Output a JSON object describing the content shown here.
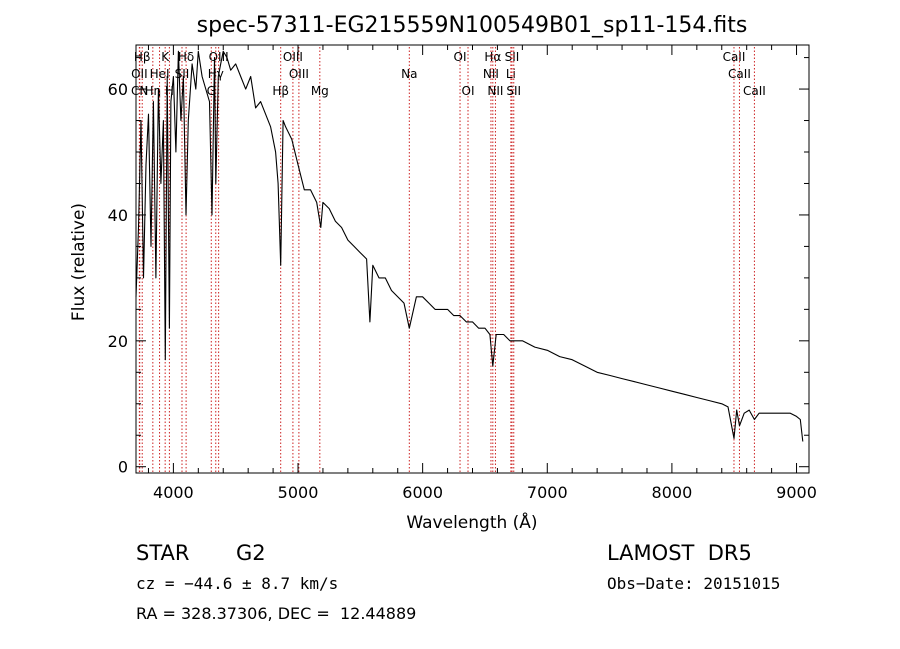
{
  "chart_data": {
    "type": "line",
    "title": "spec-57311-EG215559N100549B01_sp11-154.fits",
    "xlabel": "Wavelength (Å)",
    "ylabel": "Flux (relative)",
    "xlim": [
      3700,
      9100
    ],
    "ylim": [
      -1,
      67
    ],
    "xticks": [
      4000,
      5000,
      6000,
      7000,
      8000,
      9000
    ],
    "yticks": [
      0,
      20,
      40,
      60
    ],
    "grid": false,
    "series": [
      {
        "x": [
          3700,
          3720,
          3740,
          3760,
          3780,
          3800,
          3820,
          3840,
          3860,
          3880,
          3900,
          3920,
          3935,
          3950,
          3968,
          3980,
          4000,
          4020,
          4040,
          4060,
          4080,
          4101,
          4120,
          4150,
          4180,
          4200,
          4230,
          4260,
          4290,
          4310,
          4330,
          4340,
          4360,
          4380,
          4400,
          4430,
          4460,
          4500,
          4540,
          4580,
          4620,
          4660,
          4700,
          4740,
          4780,
          4820,
          4840,
          4861,
          4880,
          4900,
          4950,
          5000,
          5050,
          5100,
          5150,
          5183,
          5200,
          5250,
          5300,
          5350,
          5400,
          5450,
          5500,
          5550,
          5577,
          5600,
          5650,
          5700,
          5750,
          5800,
          5850,
          5893,
          5950,
          6000,
          6050,
          6100,
          6150,
          6200,
          6250,
          6300,
          6350,
          6400,
          6450,
          6500,
          6540,
          6563,
          6590,
          6650,
          6700,
          6750,
          6800,
          6900,
          7000,
          7100,
          7200,
          7300,
          7400,
          7500,
          7600,
          7700,
          7800,
          7900,
          8000,
          8100,
          8200,
          8300,
          8400,
          8450,
          8498,
          8520,
          8542,
          8580,
          8620,
          8662,
          8700,
          8750,
          8800,
          8850,
          8900,
          8950,
          9000,
          9030,
          9050
        ],
        "y": [
          27,
          38,
          55,
          30,
          48,
          56,
          35,
          58,
          30,
          60,
          45,
          55,
          17,
          62,
          22,
          58,
          62,
          50,
          66,
          55,
          62,
          40,
          55,
          64,
          60,
          66,
          62,
          60,
          58,
          40,
          65,
          45,
          62,
          64,
          66,
          65,
          63,
          64,
          62,
          60,
          62,
          57,
          58,
          56,
          54,
          50,
          45,
          32,
          55,
          54,
          52,
          48,
          44,
          44,
          42,
          38,
          42,
          41,
          39,
          38,
          36,
          35,
          34,
          33,
          23,
          32,
          30,
          30,
          28,
          27,
          26,
          22,
          27,
          27,
          26,
          25,
          25,
          25,
          24,
          24,
          23,
          23,
          22,
          22,
          21,
          16,
          21,
          21,
          20,
          20,
          20,
          19,
          18.5,
          17.5,
          17,
          16,
          15,
          14.5,
          14,
          13.5,
          13,
          12.5,
          12,
          11.5,
          11,
          10.5,
          10,
          9.5,
          4.5,
          9,
          6.5,
          8.5,
          9,
          7.5,
          8.5,
          8.5,
          8.5,
          8.5,
          8.5,
          8.5,
          8,
          7.5,
          4
        ]
      }
    ],
    "lines": [
      {
        "name": "Hβ",
        "x": 3750,
        "row": 0
      },
      {
        "name": "OII",
        "x": 3727,
        "row": 1
      },
      {
        "name": "CN",
        "x": 3730,
        "row": 2
      },
      {
        "name": "Hη",
        "x": 3835,
        "row": 2
      },
      {
        "name": "HeI",
        "x": 3889,
        "row": 1
      },
      {
        "name": "K",
        "x": 3934,
        "row": 0
      },
      {
        "name": "H",
        "x": 3968,
        "row": 2
      },
      {
        "name": "SII",
        "x": 4069,
        "row": 1
      },
      {
        "name": "Hδ",
        "x": 4102,
        "row": 0
      },
      {
        "name": "G",
        "x": 4304,
        "row": 2
      },
      {
        "name": "OIII",
        "x": 4363,
        "row": 0
      },
      {
        "name": "Hγ",
        "x": 4340,
        "row": 1
      },
      {
        "name": "Hβ",
        "x": 4861,
        "row": 2
      },
      {
        "name": "OIII",
        "x": 4959,
        "row": 0
      },
      {
        "name": "OIII",
        "x": 5007,
        "row": 1
      },
      {
        "name": "Mg",
        "x": 5175,
        "row": 2
      },
      {
        "name": "Na",
        "x": 5893,
        "row": 1
      },
      {
        "name": "OI",
        "x": 6300,
        "row": 0
      },
      {
        "name": "OI",
        "x": 6364,
        "row": 2
      },
      {
        "name": "Hα",
        "x": 6563,
        "row": 0
      },
      {
        "name": "NII",
        "x": 6548,
        "row": 1
      },
      {
        "name": "NII",
        "x": 6584,
        "row": 2
      },
      {
        "name": "SII",
        "x": 6717,
        "row": 0
      },
      {
        "name": "Li",
        "x": 6708,
        "row": 1
      },
      {
        "name": "SII",
        "x": 6731,
        "row": 2
      },
      {
        "name": "CaII",
        "x": 8498,
        "row": 0
      },
      {
        "name": "CaII",
        "x": 8542,
        "row": 1
      },
      {
        "name": "CaII",
        "x": 8662,
        "row": 2
      }
    ],
    "line_color": "#cc2222"
  },
  "info": {
    "object_class": "STAR",
    "subclass": "G2",
    "survey": "LAMOST  DR5",
    "cz": "cz = −44.6 ± 8.7 km/s",
    "obs_date": "Obs−Date: 20151015",
    "coords": "RA = 328.37306, DEC =  12.44889"
  }
}
